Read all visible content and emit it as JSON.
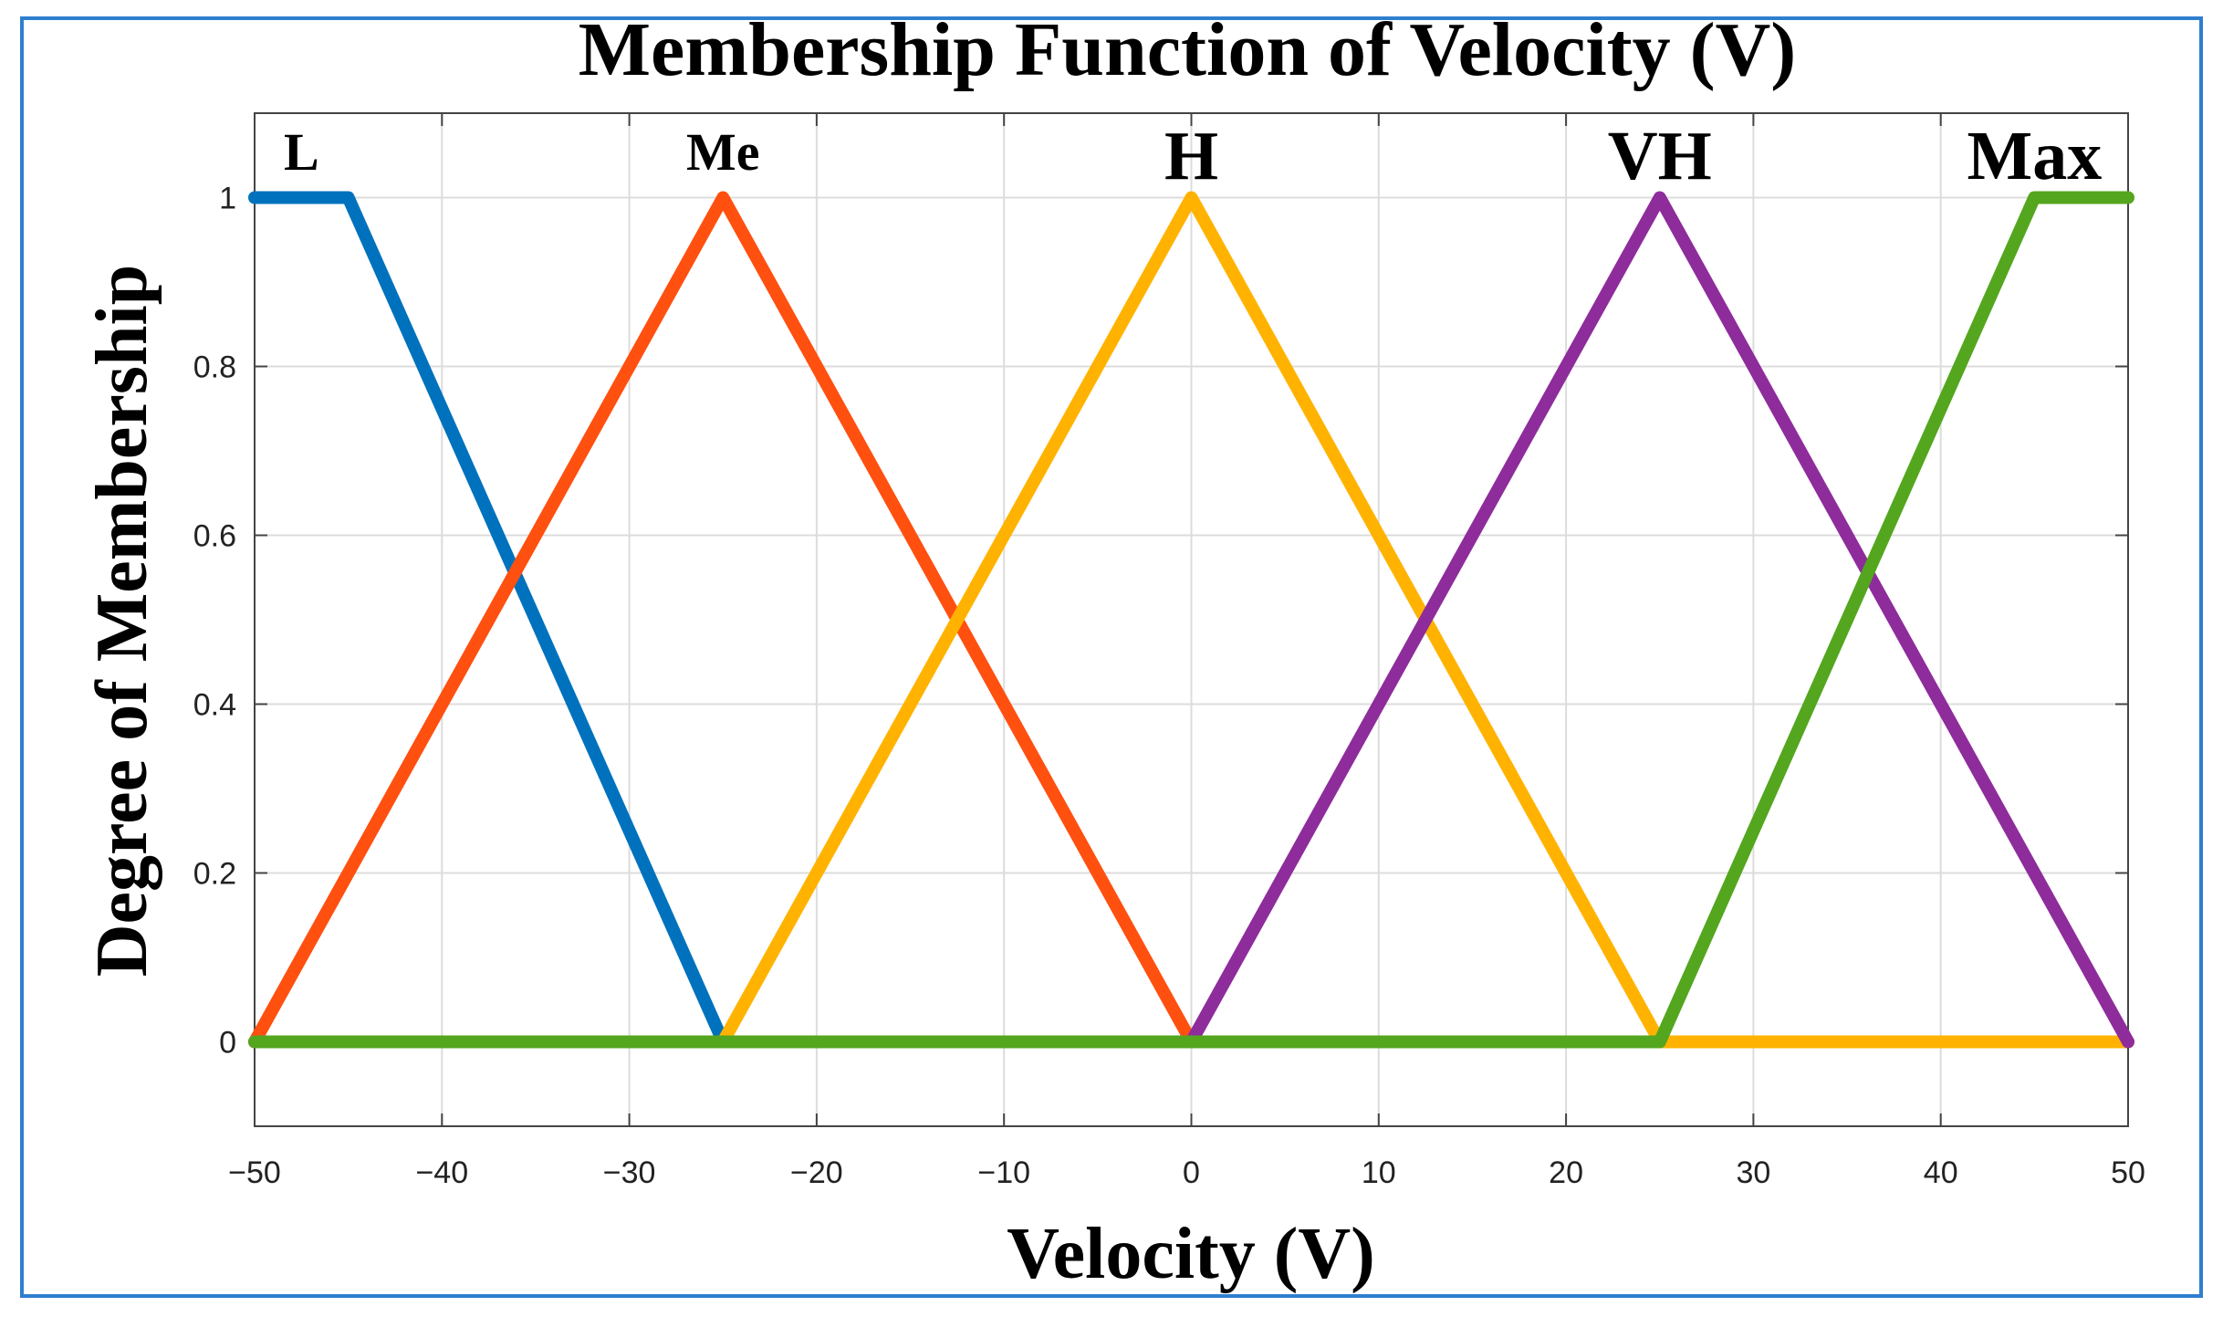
{
  "chart_data": {
    "type": "line",
    "title": "Membership Function of Velocity (V)",
    "xlabel": "Velocity (V)",
    "ylabel": "Degree of Membership",
    "xlim": [
      -50,
      50
    ],
    "ylim": [
      -0.1,
      1.1
    ],
    "xticks": [
      -50,
      -40,
      -30,
      -20,
      -10,
      0,
      10,
      20,
      30,
      40,
      50
    ],
    "xtick_labels": [
      "−50",
      "−40",
      "−30",
      "−20",
      "−10",
      "0",
      "10",
      "20",
      "30",
      "40",
      "50"
    ],
    "yticks": [
      0,
      0.2,
      0.4,
      0.6,
      0.8,
      1
    ],
    "ytick_labels": [
      "0",
      "0.2",
      "0.4",
      "0.6",
      "0.8",
      "1"
    ],
    "grid": true,
    "series": [
      {
        "name": "L",
        "color": "#0072bd",
        "x": [
          -50,
          -45,
          -25,
          50
        ],
        "y": [
          1,
          1,
          0,
          0
        ]
      },
      {
        "name": "Me",
        "color": "#ff5010",
        "x": [
          -50,
          -25,
          0,
          50
        ],
        "y": [
          0,
          1,
          0,
          0
        ]
      },
      {
        "name": "H",
        "color": "#ffb300",
        "x": [
          -50,
          -25,
          0,
          25,
          50
        ],
        "y": [
          0,
          0,
          1,
          0,
          0
        ]
      },
      {
        "name": "VH",
        "color": "#8e2c9c",
        "x": [
          -50,
          0,
          25,
          50
        ],
        "y": [
          0,
          0,
          1,
          0
        ]
      },
      {
        "name": "Max",
        "color": "#54a61e",
        "x": [
          -50,
          25,
          45,
          50
        ],
        "y": [
          0,
          0,
          1,
          1
        ]
      }
    ],
    "annotations": [
      {
        "text": "L",
        "x": -47.5,
        "size": "small"
      },
      {
        "text": "Me",
        "x": -25,
        "size": "small"
      },
      {
        "text": "H",
        "x": 0,
        "size": "large"
      },
      {
        "text": "VH",
        "x": 25,
        "size": "large"
      },
      {
        "text": "Max",
        "x": 45,
        "size": "large"
      }
    ]
  }
}
